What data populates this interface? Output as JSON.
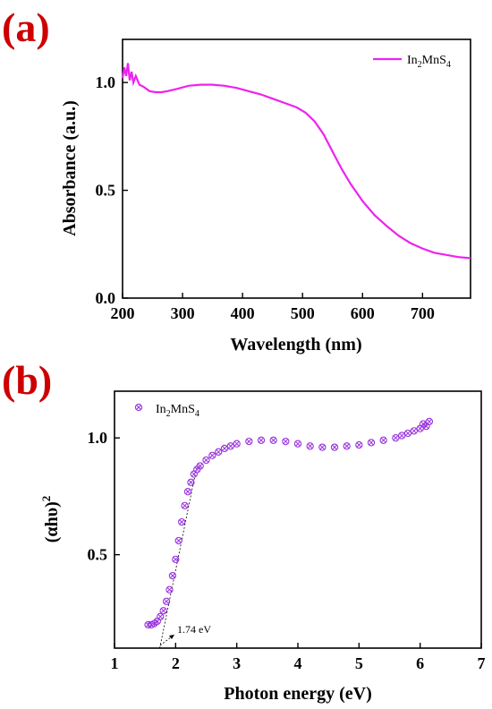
{
  "chart_data": [
    {
      "type": "line",
      "panel_label": "(a)",
      "xlabel": "Wavelength (nm)",
      "ylabel": "Absorbance (a.u.)",
      "xlim": [
        200,
        780
      ],
      "ylim": [
        0.0,
        1.2
      ],
      "xticks": [
        "200",
        "300",
        "400",
        "500",
        "600",
        "700"
      ],
      "yticks": [
        "0.0",
        "0.5",
        "1.0"
      ],
      "legend_position": "top-right",
      "grid": false,
      "series": [
        {
          "name": "In2MnS4",
          "name_base": "In",
          "name_sub1": "2",
          "name_mid": "MnS",
          "name_sub2": "4",
          "color": "#ee22ee",
          "x": [
            200,
            203,
            206,
            209,
            212,
            215,
            218,
            222,
            228,
            235,
            245,
            255,
            265,
            275,
            290,
            310,
            330,
            350,
            370,
            390,
            410,
            430,
            450,
            470,
            490,
            505,
            520,
            535,
            550,
            565,
            580,
            600,
            620,
            640,
            660,
            680,
            700,
            720,
            740,
            760,
            780
          ],
          "y": [
            1.02,
            1.07,
            1.03,
            1.09,
            1.01,
            1.05,
            1.0,
            1.03,
            0.99,
            0.98,
            0.96,
            0.955,
            0.955,
            0.96,
            0.97,
            0.985,
            0.99,
            0.99,
            0.985,
            0.975,
            0.96,
            0.945,
            0.925,
            0.905,
            0.885,
            0.86,
            0.82,
            0.76,
            0.68,
            0.6,
            0.53,
            0.45,
            0.385,
            0.335,
            0.29,
            0.255,
            0.23,
            0.21,
            0.2,
            0.19,
            0.185
          ]
        }
      ]
    },
    {
      "type": "scatter",
      "panel_label": "(b)",
      "xlabel": "Photon energy (eV)",
      "ylabel_base": "(αhυ)",
      "ylabel_sup": "2",
      "xlim": [
        1,
        7
      ],
      "ylim": [
        0.1,
        1.2
      ],
      "xticks": [
        "1",
        "2",
        "3",
        "4",
        "5",
        "6",
        "7"
      ],
      "yticks": [
        "0.5",
        "1.0"
      ],
      "legend_position": "top-left",
      "grid": false,
      "annotation": "1.74 eV",
      "tangent_line": {
        "x": [
          1.74,
          2.34
        ],
        "y": [
          0.1,
          0.87
        ]
      },
      "series": [
        {
          "name": "In2MnS4",
          "name_base": "In",
          "name_sub1": "2",
          "name_mid": "MnS",
          "name_sub2": "4",
          "color": "#9933dd",
          "x": [
            1.55,
            1.6,
            1.65,
            1.7,
            1.75,
            1.8,
            1.85,
            1.9,
            1.95,
            2.0,
            2.05,
            2.1,
            2.15,
            2.2,
            2.25,
            2.3,
            2.35,
            2.4,
            2.5,
            2.6,
            2.7,
            2.8,
            2.9,
            3.0,
            3.2,
            3.4,
            3.6,
            3.8,
            4.0,
            4.2,
            4.4,
            4.6,
            4.8,
            5.0,
            5.2,
            5.4,
            5.6,
            5.7,
            5.8,
            5.9,
            6.0,
            6.05,
            6.1,
            6.15
          ],
          "y": [
            0.2,
            0.2,
            0.205,
            0.215,
            0.235,
            0.26,
            0.3,
            0.35,
            0.41,
            0.48,
            0.56,
            0.64,
            0.71,
            0.77,
            0.81,
            0.845,
            0.865,
            0.88,
            0.905,
            0.925,
            0.94,
            0.955,
            0.965,
            0.975,
            0.985,
            0.99,
            0.99,
            0.985,
            0.975,
            0.965,
            0.96,
            0.96,
            0.965,
            0.97,
            0.98,
            0.99,
            1.0,
            1.01,
            1.02,
            1.03,
            1.04,
            1.06,
            1.05,
            1.07
          ]
        }
      ]
    }
  ]
}
